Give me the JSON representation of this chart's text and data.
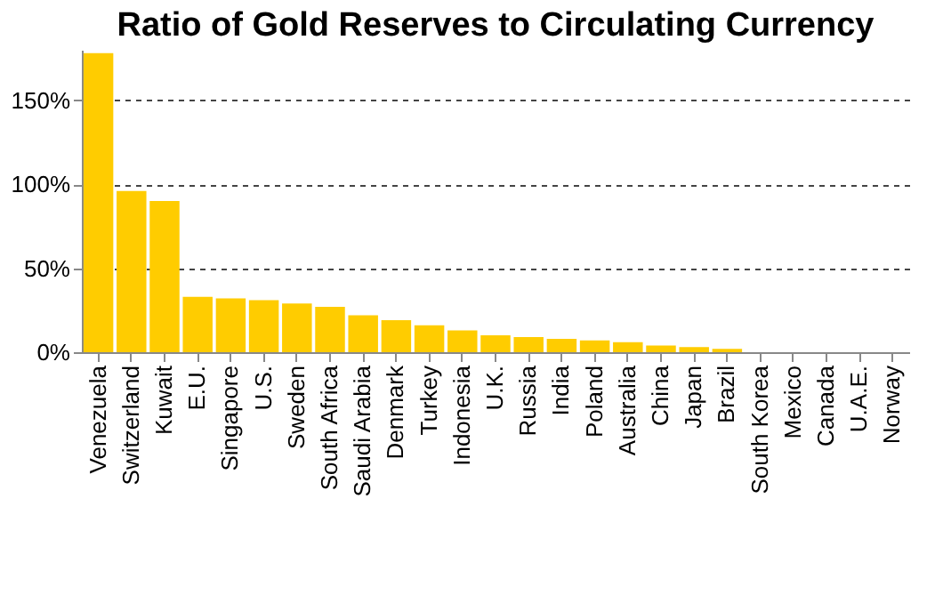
{
  "chart_data": {
    "type": "bar",
    "title": "Ratio of Gold Reserves to Circulating Currency",
    "categories": [
      "Venezuela",
      "Switzerland",
      "Kuwait",
      "E.U.",
      "Singapore",
      "U.S.",
      "Sweden",
      "South Africa",
      "Saudi Arabia",
      "Denmark",
      "Turkey",
      "Indonesia",
      "U.K.",
      "Russia",
      "India",
      "Poland",
      "Australia",
      "China",
      "Japan",
      "Brazil",
      "South Korea",
      "Mexico",
      "Canada",
      "U.A.E.",
      "Norway"
    ],
    "values": [
      178,
      96,
      90,
      33,
      32,
      31,
      29,
      27,
      22,
      19,
      16,
      13,
      10,
      9,
      8,
      7,
      6,
      4,
      3,
      2,
      0,
      0,
      0,
      0,
      0
    ],
    "color": "#ffcc00",
    "ylim": [
      0,
      180
    ],
    "yticks": [
      {
        "value": 0,
        "label": "0%"
      },
      {
        "value": 50,
        "label": "50%"
      },
      {
        "value": 100,
        "label": "100%"
      },
      {
        "value": 150,
        "label": "150%"
      }
    ],
    "grid": "y"
  }
}
